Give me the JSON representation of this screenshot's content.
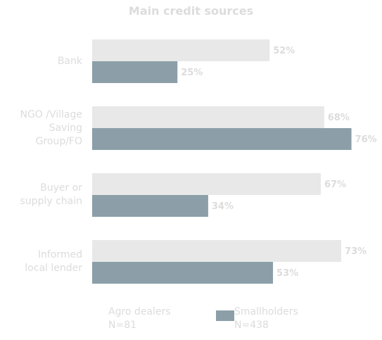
{
  "chart_data": {
    "type": "hbar",
    "title": "Main credit sources",
    "categories": [
      "Bank",
      "NGO /Village Saving Group/FO",
      "Buyer or supply chain",
      "Informed local lender"
    ],
    "series": [
      {
        "name": "Agro dealers",
        "n_label": "N=81",
        "color": "#e8e8e8",
        "values": [
          52,
          68,
          67,
          73
        ],
        "value_labels": [
          "52%",
          "68%",
          "67%",
          "73%"
        ]
      },
      {
        "name": "Smallholders",
        "n_label": "N=438",
        "color": "#8c9fa8",
        "values": [
          25,
          76,
          34,
          53
        ],
        "value_labels": [
          "25%",
          "76%",
          "34%",
          "53%"
        ]
      }
    ]
  }
}
